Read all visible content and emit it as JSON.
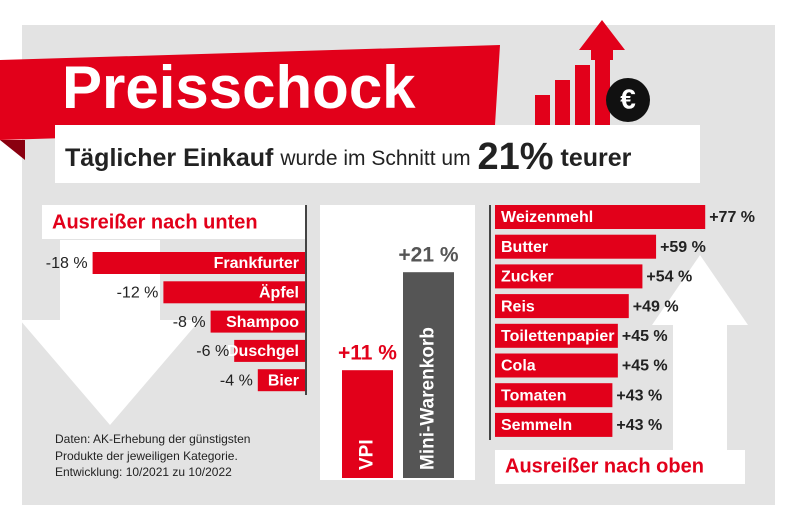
{
  "header": {
    "title": "Preisschock",
    "subtitle_bold": "Täglicher Einkauf",
    "subtitle_middle": "wurde im Schnitt um",
    "subtitle_figure": "21%",
    "subtitle_end": "teurer",
    "euro": "€",
    "source": [
      "Daten: AK-Erhebung der günstigsten",
      "Produkte der jeweiligen Kategorie.",
      "Entwicklung: 10/2021 zu 10/2022"
    ]
  },
  "chart_data": [
    {
      "type": "bar",
      "orientation": "horizontal",
      "title": "Ausreißer nach unten",
      "categories": [
        "Frankfurter",
        "Äpfel",
        "Shampoo",
        "Duschgel",
        "Bier"
      ],
      "values": [
        -18,
        -12,
        -8,
        -6,
        -4
      ],
      "value_labels": [
        "-18 %",
        "-12 %",
        "-8 %",
        "-6 %",
        "-4 %"
      ],
      "color": "#e2001a"
    },
    {
      "type": "bar",
      "orientation": "vertical",
      "categories": [
        "VPI",
        "Mini-Warenkorb"
      ],
      "values": [
        11,
        21
      ],
      "value_labels": [
        "+11 %",
        "+21 %"
      ],
      "colors": [
        "#e2001a",
        "#555555"
      ]
    },
    {
      "type": "bar",
      "orientation": "horizontal",
      "title": "Ausreißer nach oben",
      "categories": [
        "Weizenmehl",
        "Butter",
        "Zucker",
        "Reis",
        "Toilettenpapier",
        "Cola",
        "Tomaten",
        "Semmeln"
      ],
      "values": [
        77,
        59,
        54,
        49,
        45,
        45,
        43,
        43
      ],
      "value_labels": [
        "+77 %",
        "+59 %",
        "+54 %",
        "+49 %",
        "+45 %",
        "+45 %",
        "+43 %",
        "+43 %"
      ],
      "color": "#e2001a"
    }
  ]
}
